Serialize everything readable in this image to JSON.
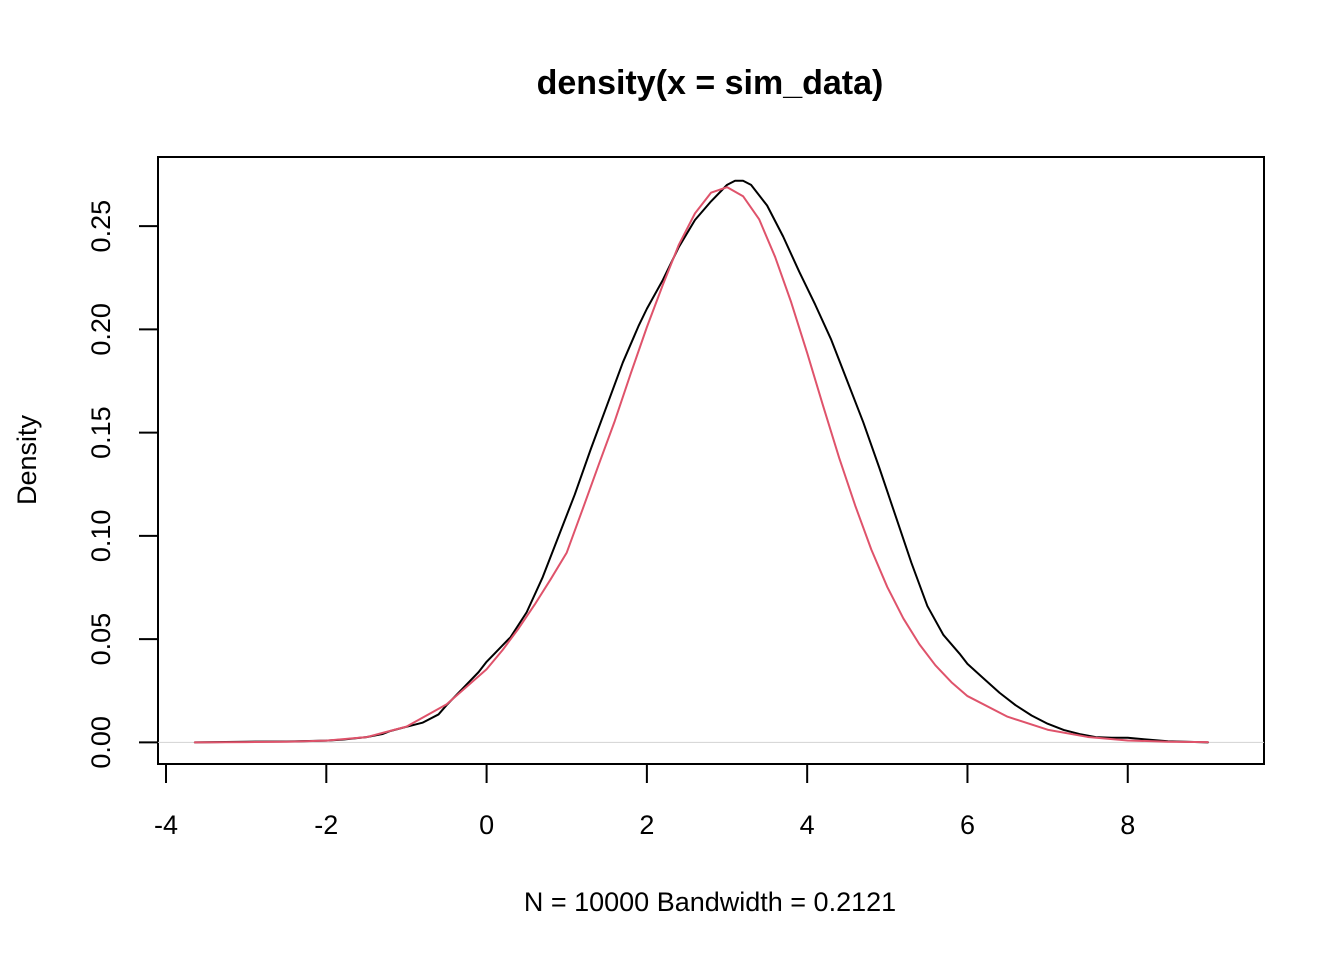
{
  "chart_data": {
    "type": "line",
    "title": "density(x = sim_data)",
    "xlabel": "N = 10000   Bandwidth = 0.2121",
    "ylabel": "Density",
    "xlim": [
      -4.1,
      9.7
    ],
    "ylim": [
      -0.0105,
      0.2835
    ],
    "x_ticks": [
      -4,
      -2,
      0,
      2,
      4,
      6,
      8
    ],
    "y_ticks": [
      0.0,
      0.05,
      0.1,
      0.15,
      0.2,
      0.25
    ],
    "x_tick_labels": [
      "-4",
      "-2",
      "0",
      "2",
      "4",
      "6",
      "8"
    ],
    "y_tick_labels": [
      "0.00",
      "0.05",
      "0.10",
      "0.15",
      "0.20",
      "0.25"
    ],
    "grid": false,
    "reference_line": {
      "y": 0,
      "color": "#D3D3D3"
    },
    "series": [
      {
        "color": "#000000",
        "x": [
          -3.64,
          -3.0,
          -2.5,
          -2.0,
          -1.8,
          -1.5,
          -1.3,
          -1.2,
          -1.1,
          -1.0,
          -0.8,
          -0.6,
          -0.5,
          -0.3,
          -0.1,
          0.0,
          0.1,
          0.3,
          0.5,
          0.7,
          0.9,
          1.1,
          1.3,
          1.5,
          1.7,
          1.9,
          2.0,
          2.2,
          2.4,
          2.6,
          2.8,
          3.0,
          3.1,
          3.2,
          3.3,
          3.5,
          3.7,
          3.9,
          4.1,
          4.3,
          4.5,
          4.7,
          4.9,
          5.1,
          5.3,
          5.5,
          5.7,
          5.9,
          6.0,
          6.2,
          6.4,
          6.6,
          6.8,
          7.0,
          7.2,
          7.4,
          7.6,
          7.8,
          8.0,
          8.2,
          8.5,
          9.0
        ],
        "y": [
          0.0,
          0.0003,
          0.0004,
          0.0008,
          0.0013,
          0.0025,
          0.004,
          0.0055,
          0.0065,
          0.0075,
          0.0095,
          0.0135,
          0.018,
          0.026,
          0.034,
          0.039,
          0.043,
          0.051,
          0.063,
          0.08,
          0.1,
          0.12,
          0.142,
          0.163,
          0.184,
          0.202,
          0.21,
          0.224,
          0.24,
          0.253,
          0.262,
          0.27,
          0.272,
          0.272,
          0.27,
          0.26,
          0.245,
          0.228,
          0.212,
          0.195,
          0.175,
          0.155,
          0.133,
          0.11,
          0.087,
          0.066,
          0.052,
          0.043,
          0.038,
          0.031,
          0.024,
          0.018,
          0.013,
          0.009,
          0.006,
          0.004,
          0.0025,
          0.0022,
          0.0022,
          0.0015,
          0.0005,
          0.0
        ]
      },
      {
        "color": "#DF536B",
        "x": [
          -3.64,
          -3.0,
          -2.5,
          -2.0,
          -1.5,
          -1.0,
          -0.5,
          0.0,
          0.2,
          0.4,
          0.6,
          0.8,
          1.0,
          1.2,
          1.4,
          1.6,
          1.8,
          2.0,
          2.2,
          2.4,
          2.6,
          2.8,
          3.0,
          3.2,
          3.4,
          3.6,
          3.8,
          4.0,
          4.2,
          4.4,
          4.6,
          4.8,
          5.0,
          5.2,
          5.4,
          5.6,
          5.8,
          6.0,
          6.5,
          7.0,
          7.5,
          8.0,
          8.5,
          9.0
        ],
        "y": [
          0.0,
          0.0001,
          0.0003,
          0.0008,
          0.0025,
          0.0076,
          0.0184,
          0.0354,
          0.0447,
          0.0552,
          0.0667,
          0.079,
          0.0919,
          0.1131,
          0.1346,
          0.1557,
          0.1788,
          0.2011,
          0.2217,
          0.2411,
          0.2562,
          0.2662,
          0.2689,
          0.2645,
          0.2534,
          0.2351,
          0.2132,
          0.1886,
          0.1628,
          0.1377,
          0.1146,
          0.0934,
          0.0752,
          0.06,
          0.0475,
          0.0373,
          0.0291,
          0.0224,
          0.0124,
          0.0061,
          0.0026,
          0.0009,
          0.0003,
          0.0001
        ]
      }
    ]
  }
}
